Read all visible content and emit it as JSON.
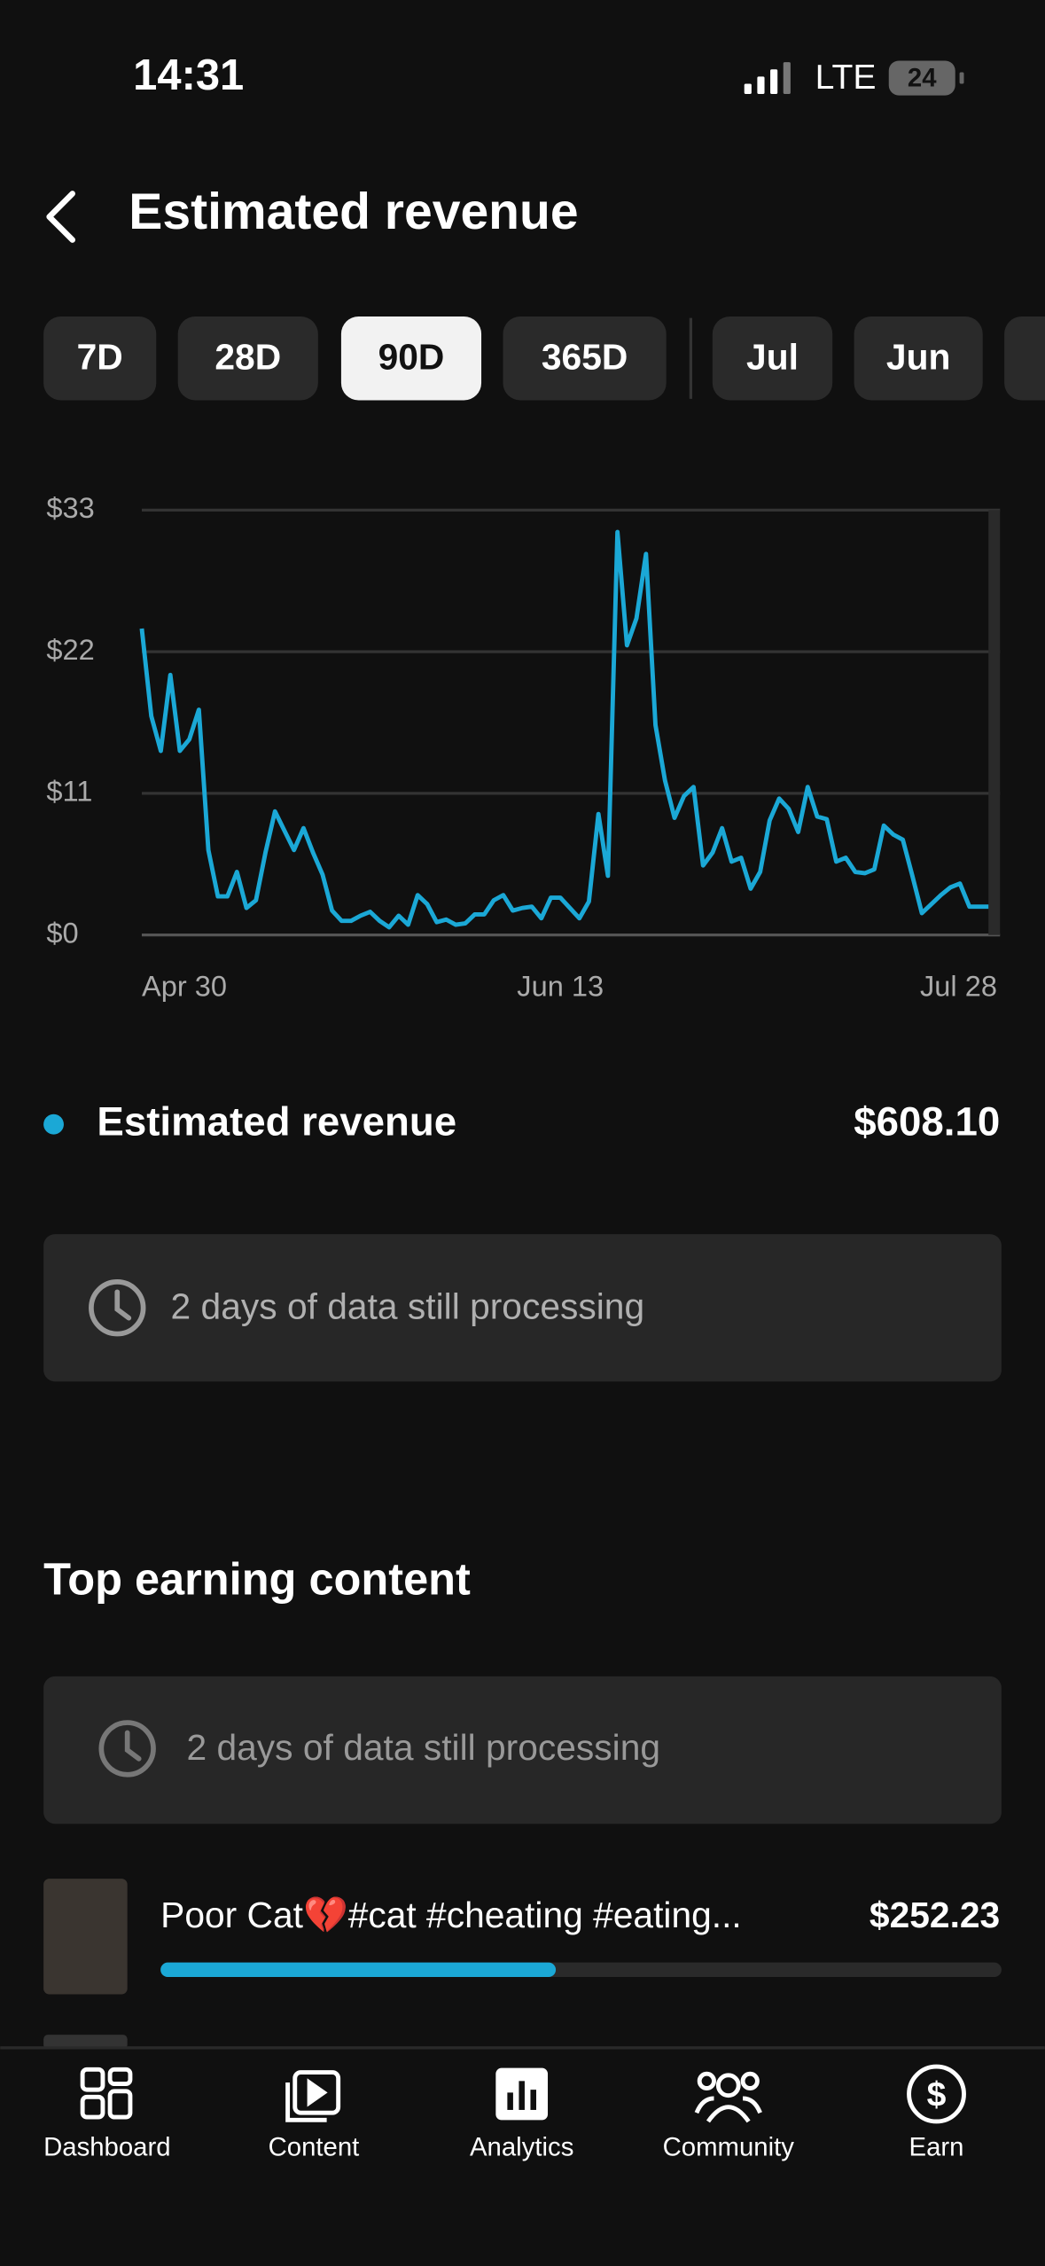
{
  "status_bar": {
    "time": "14:31",
    "network": "LTE",
    "battery": "24"
  },
  "header": {
    "title": "Estimated revenue"
  },
  "filters": {
    "items": [
      "7D",
      "28D",
      "90D",
      "365D",
      "Jul",
      "Jun"
    ],
    "selected": 2
  },
  "chart": {
    "type": "line",
    "color": "#1ba8d6",
    "grid": true,
    "categories": [
      "Apr 30",
      null,
      null,
      null,
      null,
      null,
      null,
      null,
      null,
      null,
      null,
      null,
      null,
      null,
      null,
      null,
      null,
      null,
      null,
      null,
      null,
      null,
      null,
      null,
      null,
      null,
      null,
      null,
      null,
      null,
      null,
      null,
      null,
      null,
      null,
      null,
      null,
      null,
      null,
      null,
      null,
      null,
      null,
      null,
      "Jun 13",
      null,
      null,
      null,
      null,
      null,
      null,
      null,
      null,
      null,
      null,
      null,
      null,
      null,
      null,
      null,
      null,
      null,
      null,
      null,
      null,
      null,
      null,
      null,
      null,
      null,
      null,
      null,
      null,
      null,
      null,
      null,
      null,
      null,
      null,
      null,
      null,
      null,
      null,
      null,
      null,
      null,
      null,
      null,
      null,
      "Jul 28"
    ],
    "values": [
      23.8,
      17,
      14.3,
      20.2,
      14.3,
      15.2,
      17.5,
      6.6,
      3,
      3,
      4.9,
      2.1,
      2.7,
      6.4,
      9.6,
      8.1,
      6.6,
      8.3,
      6.4,
      4.7,
      1.9,
      1.1,
      1.1,
      1.5,
      1.8,
      1.1,
      0.6,
      1.5,
      0.8,
      3.1,
      2.4,
      1.0,
      1.2,
      0.8,
      0.9,
      1.6,
      1.6,
      2.7,
      3.1,
      1.9,
      2.1,
      2.2,
      1.3,
      2.9,
      2.9,
      2.1,
      1.3,
      2.6,
      9.4,
      4.6,
      31.3,
      22.5,
      24.6,
      29.6,
      16.3,
      12.0,
      9.1,
      10.8,
      11.5,
      5.4,
      6.4,
      8.3,
      5.7,
      6.0,
      3.6,
      4.9,
      8.9,
      10.6,
      9.8,
      8.0,
      11.5,
      9.2,
      9.0,
      5.7,
      6.0,
      4.9,
      4.8,
      5.1,
      8.5,
      7.8,
      7.4,
      4.6,
      1.7,
      2.4,
      3.1,
      3.7,
      4.0,
      2.2,
      2.2,
      2.2
    ],
    "ylim": [
      0,
      33
    ],
    "yticks": [
      {
        "value": 0,
        "label": "$0"
      },
      {
        "value": 11,
        "label": "$11"
      },
      {
        "value": 22,
        "label": "$22"
      },
      {
        "value": 33,
        "label": "$33"
      }
    ]
  },
  "summary": {
    "label": "Estimated revenue",
    "value": "$608.10"
  },
  "notice": "2 days of data still processing",
  "top_content": {
    "title": "Top earning content",
    "notice": "2 days of data still processing",
    "items": [
      {
        "title": "Poor Cat💔#cat #cheating #eating...",
        "value": "$252.23",
        "progress": 0.47
      }
    ]
  },
  "nav": [
    "Dashboard",
    "Content",
    "Analytics",
    "Community",
    "Earn"
  ]
}
